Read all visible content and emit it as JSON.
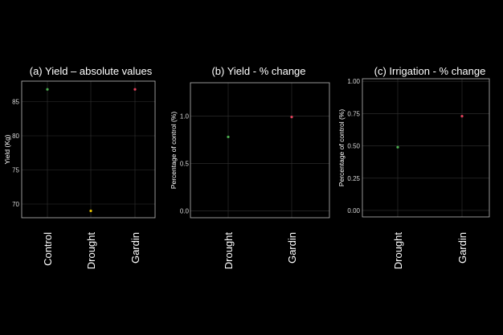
{
  "colors": {
    "background": "#000000",
    "panel_border": "#bbbbbb",
    "grid": "#333333",
    "text": "#ffffff",
    "axis_text": "#d9d9d9",
    "control_point": "#4caf50",
    "drought_point": "#e6c200",
    "gardin_point": "#e0405a"
  },
  "chart_data": [
    {
      "type": "scatter",
      "title": "(a) Yield – absolute values",
      "ylabel": "Yield (Kg)",
      "xlabel": "",
      "categories": [
        "Control",
        "Drought",
        "Gardin"
      ],
      "values": [
        86.8,
        69.0,
        86.8
      ],
      "point_colors": [
        "#4caf50",
        "#e6c200",
        "#e0405a"
      ],
      "ylim": [
        68,
        88
      ],
      "yticks": [
        70,
        75,
        80,
        85
      ],
      "ytick_labels": [
        "70",
        "75",
        "80",
        "85"
      ],
      "grid": true
    },
    {
      "type": "scatter",
      "title": "(b) Yield - % change",
      "ylabel": "Percentage of control (%)",
      "xlabel": "",
      "categories": [
        "Drought",
        "Gardin"
      ],
      "values": [
        0.78,
        0.99
      ],
      "point_colors": [
        "#4caf50",
        "#e0405a"
      ],
      "ylim": [
        -0.07,
        1.35
      ],
      "yticks": [
        0.0,
        0.5,
        1.0
      ],
      "ytick_labels": [
        "0.0",
        "0.5",
        "1.0"
      ],
      "grid": true
    },
    {
      "type": "scatter",
      "title": "(c) Irrigation - % change",
      "ylabel": "Percentage of control (%)",
      "xlabel": "",
      "categories": [
        "Drought",
        "Gardin"
      ],
      "values": [
        0.49,
        0.73
      ],
      "point_colors": [
        "#4caf50",
        "#e0405a"
      ],
      "ylim": [
        -0.05,
        1.02
      ],
      "yticks": [
        0.0,
        0.25,
        0.5,
        0.75,
        1.0
      ],
      "ytick_labels": [
        "0.00",
        "0.25",
        "0.50",
        "0.75",
        "1.00"
      ],
      "grid": true
    }
  ]
}
